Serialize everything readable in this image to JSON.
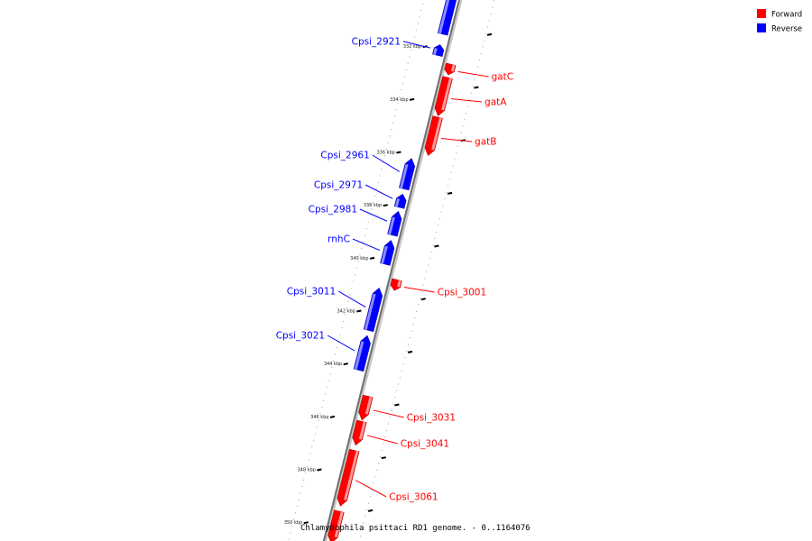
{
  "legend": [
    {
      "label": "Forward",
      "color": "#ff0000"
    },
    {
      "label": "Reverse",
      "color": "#0000ff"
    }
  ],
  "caption": "Chlamydophila psittaci RD1 genome. - 0..1164076",
  "tick_unit": "kbp",
  "ticks": [
    332,
    334,
    336,
    338,
    340,
    342,
    344,
    346,
    348,
    350
  ],
  "genes": [
    {
      "name": "",
      "strand": "reverse",
      "start": 329.6,
      "end": 331.4
    },
    {
      "name": "Cpsi_2921",
      "strand": "reverse",
      "start": 331.8,
      "end": 332.2
    },
    {
      "name": "gatC",
      "strand": "forward",
      "start": 332.4,
      "end": 332.8
    },
    {
      "name": "gatA",
      "strand": "forward",
      "start": 332.9,
      "end": 334.35
    },
    {
      "name": "gatB",
      "strand": "forward",
      "start": 334.4,
      "end": 335.85
    },
    {
      "name": "Cpsi_2961",
      "strand": "reverse",
      "start": 336.1,
      "end": 337.25
    },
    {
      "name": "Cpsi_2971",
      "strand": "reverse",
      "start": 337.45,
      "end": 337.95
    },
    {
      "name": "Cpsi_2981",
      "strand": "reverse",
      "start": 338.1,
      "end": 339.0
    },
    {
      "name": "rnhC",
      "strand": "reverse",
      "start": 339.2,
      "end": 340.1
    },
    {
      "name": "Cpsi_3001",
      "strand": "forward",
      "start": 340.55,
      "end": 340.95
    },
    {
      "name": "Cpsi_3011",
      "strand": "reverse",
      "start": 341.0,
      "end": 342.6
    },
    {
      "name": "Cpsi_3021",
      "strand": "reverse",
      "start": 342.8,
      "end": 344.1
    },
    {
      "name": "Cpsi_3031",
      "strand": "forward",
      "start": 344.95,
      "end": 345.85
    },
    {
      "name": "Cpsi_3041",
      "strand": "forward",
      "start": 345.9,
      "end": 346.8
    },
    {
      "name": "Cpsi_3061",
      "strand": "forward",
      "start": 347.0,
      "end": 349.1
    },
    {
      "name": "",
      "strand": "forward",
      "start": 349.3,
      "end": 350.5
    }
  ]
}
